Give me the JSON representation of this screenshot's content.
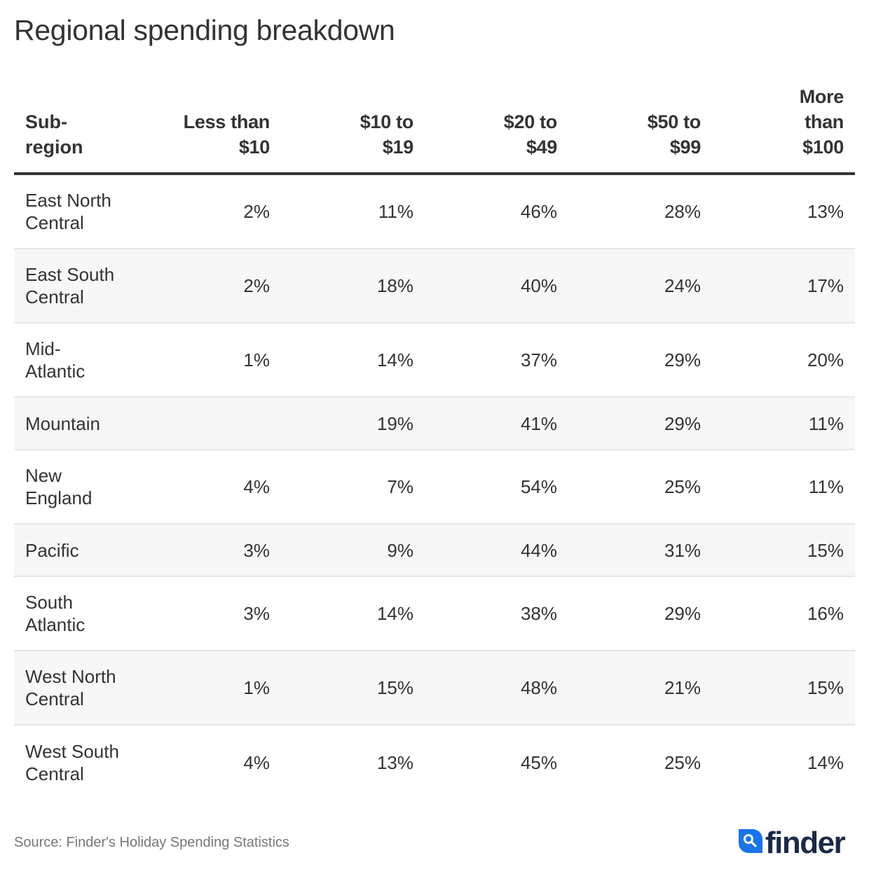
{
  "title": "Regional spending breakdown",
  "chart_data": {
    "type": "table",
    "title": "Regional spending breakdown",
    "columns": [
      "Sub-\nregion",
      "Less than\n$10",
      "$10 to\n$19",
      "$20 to\n$49",
      "$50 to\n$99",
      "More\nthan\n$100"
    ],
    "rows": [
      {
        "region": "East North\nCentral",
        "values": [
          "2%",
          "11%",
          "46%",
          "28%",
          "13%"
        ]
      },
      {
        "region": "East South\nCentral",
        "values": [
          "2%",
          "18%",
          "40%",
          "24%",
          "17%"
        ]
      },
      {
        "region": "Mid-\nAtlantic",
        "values": [
          "1%",
          "14%",
          "37%",
          "29%",
          "20%"
        ]
      },
      {
        "region": "Mountain",
        "values": [
          "",
          "19%",
          "41%",
          "29%",
          "11%"
        ]
      },
      {
        "region": "New\nEngland",
        "values": [
          "4%",
          "7%",
          "54%",
          "25%",
          "11%"
        ]
      },
      {
        "region": "Pacific",
        "values": [
          "3%",
          "9%",
          "44%",
          "31%",
          "15%"
        ]
      },
      {
        "region": "South\nAtlantic",
        "values": [
          "3%",
          "14%",
          "38%",
          "29%",
          "16%"
        ]
      },
      {
        "region": "West North\nCentral",
        "values": [
          "1%",
          "15%",
          "48%",
          "21%",
          "15%"
        ]
      },
      {
        "region": "West South\nCentral",
        "values": [
          "4%",
          "13%",
          "45%",
          "25%",
          "14%"
        ]
      }
    ]
  },
  "footer": {
    "source": "Source: Finder's Holiday Spending Statistics",
    "logo_text": "finder",
    "logo_icon": "search-icon"
  },
  "colors": {
    "text": "#333333",
    "alt_row": "#f7f7f7",
    "row_border": "#e6e6e6",
    "source_text": "#777777",
    "logo_blue": "#1a73e8",
    "logo_navy": "#1b2a45"
  }
}
